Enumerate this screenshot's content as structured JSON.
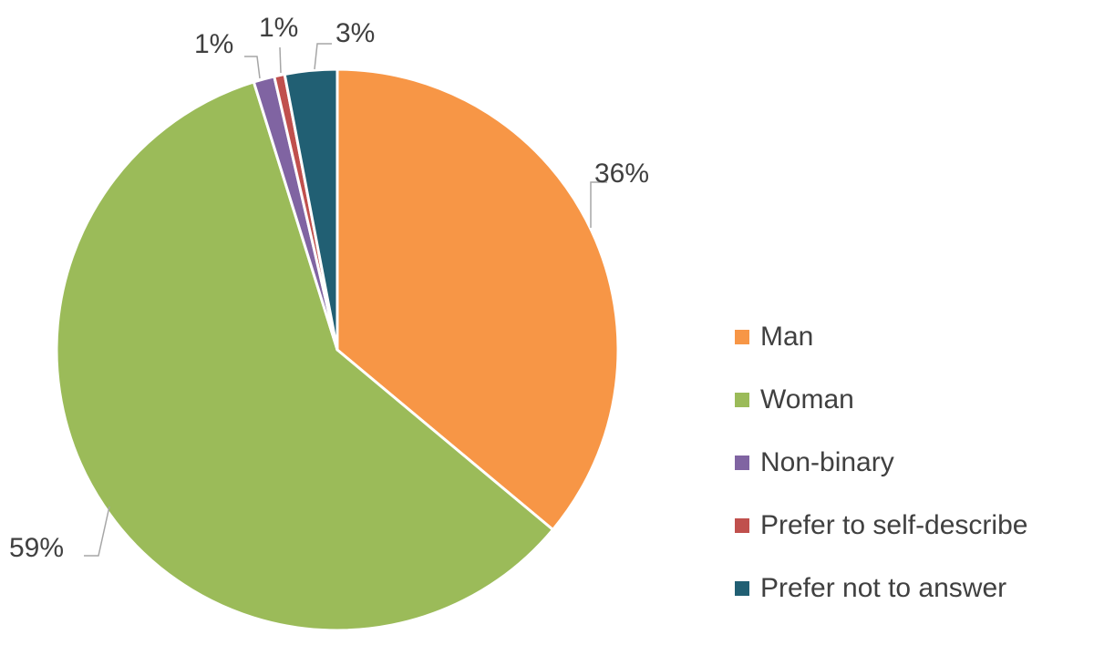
{
  "chart_data": {
    "type": "pie",
    "title": "",
    "start_angle_deg": 0,
    "direction": "clockwise",
    "slices": [
      {
        "label": "Man",
        "value": 36,
        "display": "36%",
        "color": "#F79646"
      },
      {
        "label": "Woman",
        "value": 59,
        "display": "59%",
        "color": "#9BBB59"
      },
      {
        "label": "Non-binary",
        "value": 1.2,
        "display": "1%",
        "color": "#8064A2"
      },
      {
        "label": "Prefer to self-describe",
        "value": 0.6,
        "display": "1%",
        "color": "#C0504D"
      },
      {
        "label": "Prefer not to answer",
        "value": 3,
        "display": "3%",
        "color": "#215F73"
      }
    ],
    "legend_position": "right"
  }
}
